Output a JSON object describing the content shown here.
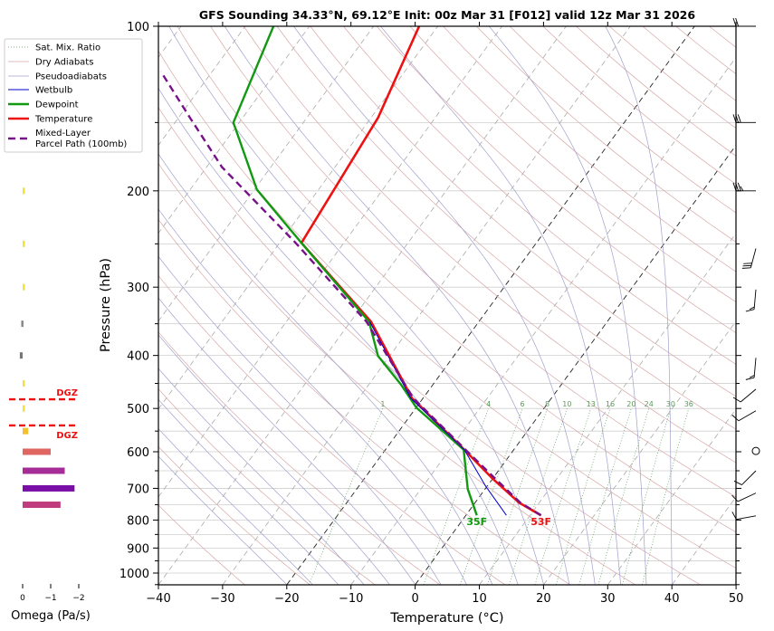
{
  "chart_data": {
    "type": "line",
    "subtype": "skew-t log-p sounding",
    "title": "GFS Sounding 34.33°N, 69.12°E Init: 00z Mar 31 [F012] valid 12z Mar 31 2026",
    "xlabel": "Temperature (°C)",
    "ylabel": "Pressure (hPa)",
    "xlim": [
      -40,
      50
    ],
    "ylim": [
      1050,
      100
    ],
    "x_ticks": [
      "−40",
      "−30",
      "−20",
      "−10",
      "0",
      "10",
      "20",
      "30",
      "40",
      "50"
    ],
    "y_ticks": [
      "100",
      "200",
      "300",
      "400",
      "500",
      "600",
      "700",
      "800",
      "900",
      "1000"
    ],
    "legend": {
      "placement": "upper-left outside",
      "entries": [
        "Sat. Mix. Ratio",
        "Dry Adiabats",
        "Pseudoadiabats",
        "Wetbulb",
        "Dewpoint",
        "Temperature",
        "Mixed-Layer",
        "Parcel Path (100mb)"
      ]
    },
    "mixing_ratio_labels": [
      "1",
      "4",
      "6",
      "8",
      "10",
      "13",
      "16",
      "20",
      "24",
      "30",
      "36"
    ],
    "mixing_ratio_values": [
      1,
      4,
      6,
      8,
      10,
      13,
      16,
      20,
      24,
      30,
      36
    ],
    "series": [
      {
        "name": "Temperature",
        "color": "#ee1111",
        "pressure": [
          784,
          743,
          670,
          595,
          479,
          347,
          249,
          147,
          100
        ],
        "values": [
          11.7,
          6.8,
          -0.2,
          -7.7,
          -21.7,
          -36.8,
          -56.6,
          -58.9,
          -62.9
        ]
      },
      {
        "name": "Dewpoint",
        "color": "#119911",
        "pressure": [
          784,
          702,
          595,
          498,
          452,
          401,
          347,
          249,
          199,
          150,
          100
        ],
        "values": [
          1.7,
          -2.7,
          -7.8,
          -20.0,
          -25.0,
          -31.8,
          -37.1,
          -56.6,
          -69.6,
          -80.9,
          -85.6
        ]
      },
      {
        "name": "Wetbulb",
        "color": "#0000cc",
        "pressure": [
          784,
          694,
          595,
          479,
          347
        ],
        "values": [
          6.3,
          -0.2,
          -7.7,
          -21.9,
          -37.0
        ]
      },
      {
        "name": "Mixed-Layer Parcel Path (100mb)",
        "color": "#771188",
        "pressure": [
          784,
          743,
          670,
          595,
          479,
          347,
          249,
          181,
          147,
          121
        ],
        "values": [
          11.7,
          7.0,
          0.2,
          -7.5,
          -21.5,
          -37.5,
          -57.5,
          -77.6,
          -88.2,
          -98.0
        ]
      }
    ],
    "surface_labels": {
      "dewpoint": "35F",
      "temperature": "53F"
    },
    "wind_barbs": [
      {
        "p": 100,
        "dir": 270,
        "kt": 20
      },
      {
        "p": 150,
        "dir": 270,
        "kt": 30
      },
      {
        "p": 200,
        "dir": 270,
        "kt": 35
      },
      {
        "p": 255,
        "dir": 195,
        "kt": 30
      },
      {
        "p": 303,
        "dir": 185,
        "kt": 15
      },
      {
        "p": 404,
        "dir": 185,
        "kt": 15
      },
      {
        "p": 461,
        "dir": 230,
        "kt": 10
      },
      {
        "p": 505,
        "dir": 240,
        "kt": 10
      },
      {
        "p": 598,
        "dir": 0,
        "kt": 0
      },
      {
        "p": 650,
        "dir": 225,
        "kt": 10
      },
      {
        "p": 714,
        "dir": 245,
        "kt": 10
      },
      {
        "p": 786,
        "dir": 260,
        "kt": 10
      }
    ],
    "omega": {
      "xlabel": "Omega (Pa/s)",
      "x_ticks": [
        "0",
        "−1",
        "−2"
      ],
      "pressure": [
        200,
        250,
        300,
        350,
        400,
        450,
        500,
        550,
        600,
        650,
        700,
        750
      ],
      "values": [
        -0.05,
        -0.05,
        -0.05,
        0.05,
        0.1,
        -0.05,
        -0.05,
        -0.2,
        -1.0,
        -1.5,
        -1.85,
        -1.35
      ],
      "colors": [
        "#f0e040",
        "#f0e040",
        "#f0e040",
        "#888888",
        "#777777",
        "#f0e040",
        "#f0e040",
        "#f5c030",
        "#e06662",
        "#a62c98",
        "#7a0fa8",
        "#c03c7c"
      ],
      "dgz_label": "DGZ",
      "dgz_pressures": [
        481,
        537
      ]
    }
  }
}
